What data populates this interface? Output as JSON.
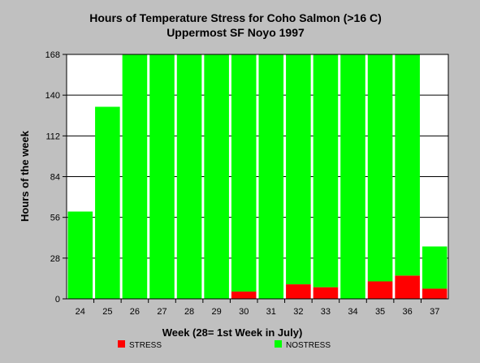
{
  "chart_data": {
    "type": "bar",
    "stacked": true,
    "title": "Hours of Temperature Stress for Coho Salmon (>16 C)",
    "subtitle": "Uppermost SF Noyo 1997",
    "xlabel": "Week (28= 1st Week in July)",
    "ylabel": "Hours of the week",
    "ylim": [
      0,
      168
    ],
    "yticks": [
      "0",
      "28",
      "56",
      "84",
      "112",
      "140",
      "168"
    ],
    "grid": true,
    "legend_position": "bottom",
    "categories": [
      "24",
      "25",
      "26",
      "27",
      "28",
      "29",
      "30",
      "31",
      "32",
      "33",
      "34",
      "35",
      "36",
      "37"
    ],
    "series": [
      {
        "name": "STRESS",
        "color": "#ff0000",
        "values": [
          0,
          0,
          0,
          0,
          0,
          0,
          5,
          0,
          10,
          8,
          0,
          12,
          16,
          7
        ]
      },
      {
        "name": "NOSTRESS",
        "color": "#00ff00",
        "values": [
          60,
          132,
          168,
          168,
          168,
          168,
          163,
          168,
          158,
          160,
          168,
          156,
          152,
          29
        ]
      }
    ],
    "plot_background": "#ffffff",
    "grid_color": "#000000"
  }
}
